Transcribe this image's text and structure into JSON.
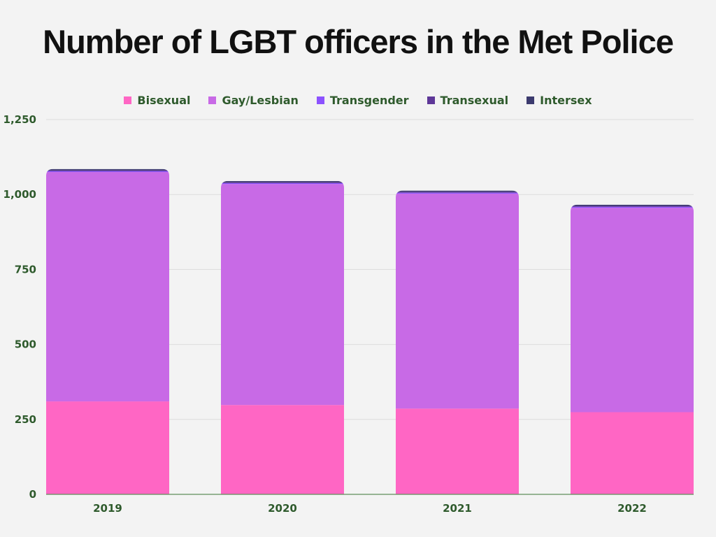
{
  "chart_data": {
    "type": "bar",
    "stacked": true,
    "title": "Number of LGBT officers in the Met Police",
    "categories": [
      "2019",
      "2020",
      "2021",
      "2022"
    ],
    "series": [
      {
        "name": "Bisexual",
        "color": "#ff66c4",
        "values": [
          310,
          298,
          286,
          274
        ]
      },
      {
        "name": "Gay/Lesbian",
        "color": "#c86ae6",
        "values": [
          765,
          737,
          717,
          682
        ]
      },
      {
        "name": "Transgender",
        "color": "#8c52ff",
        "values": [
          3,
          3,
          3,
          3
        ]
      },
      {
        "name": "Transexual",
        "color": "#5e3798",
        "values": [
          3,
          3,
          3,
          3
        ]
      },
      {
        "name": "Intersex",
        "color": "#3b3a6e",
        "values": [
          4,
          4,
          4,
          4
        ]
      }
    ],
    "yticks": [
      "0",
      "250",
      "500",
      "750",
      "1,000",
      "1,250"
    ],
    "ylim": [
      0,
      1250
    ],
    "grid": true,
    "legend_position": "top-center"
  }
}
